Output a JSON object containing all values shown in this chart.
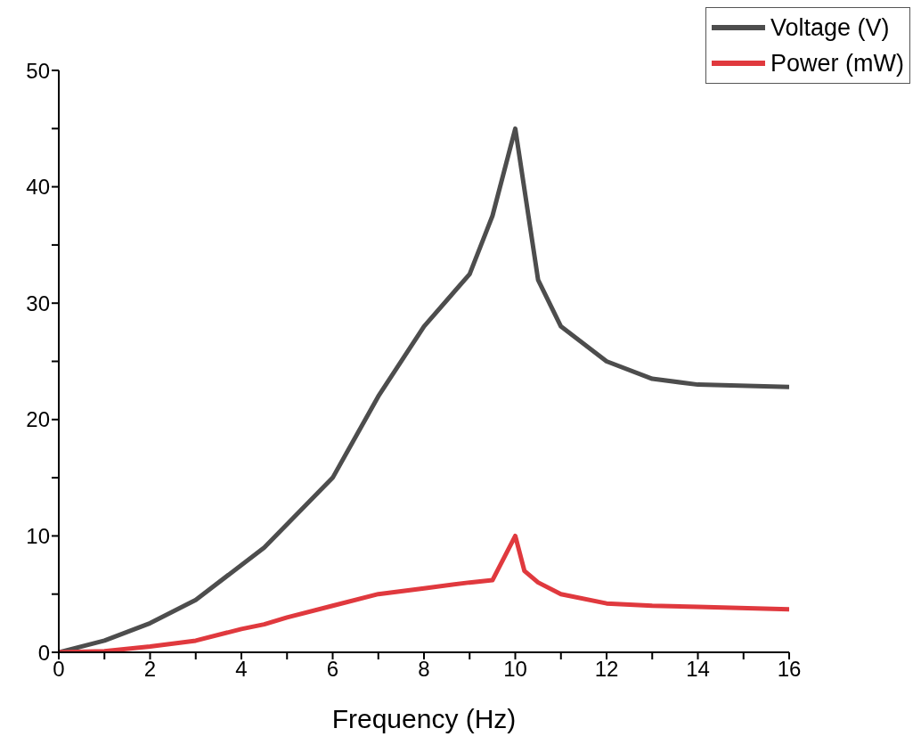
{
  "chart_data": {
    "type": "line",
    "xlabel": "Frequency (Hz)",
    "xlim": [
      0,
      16
    ],
    "ylim": [
      0,
      50
    ],
    "xticks": [
      0,
      {
        "value": 1,
        "label": null
      },
      2,
      {
        "value": 3,
        "label": null
      },
      4,
      {
        "value": 5,
        "label": null
      },
      6,
      {
        "value": 7,
        "label": null
      },
      8,
      {
        "value": 9,
        "label": null
      },
      10,
      {
        "value": 11,
        "label": null
      },
      12,
      {
        "value": 13,
        "label": null
      },
      14,
      {
        "value": 15,
        "label": null
      },
      16
    ],
    "yticks": [
      0,
      {
        "value": 5,
        "label": null
      },
      10,
      {
        "value": 15,
        "label": null
      },
      20,
      {
        "value": 25,
        "label": null
      },
      30,
      {
        "value": 35,
        "label": null
      },
      40,
      {
        "value": 45,
        "label": null
      },
      50
    ],
    "grid": false,
    "legend": "top right",
    "marker": "none",
    "line_style": "solid",
    "series": [
      {
        "name": "Voltage (V)",
        "color": "#4d4d4d",
        "x": [
          0,
          1,
          2,
          3,
          4.5,
          6,
          7,
          8,
          9,
          9.5,
          10,
          10.5,
          11,
          12,
          13,
          14,
          16
        ],
        "values": [
          0,
          1,
          2.5,
          4.5,
          9,
          15,
          22,
          28,
          32.5,
          37.5,
          45,
          32,
          28,
          25,
          23.5,
          23,
          22.8
        ]
      },
      {
        "name": "Power (mW)",
        "color": "#e0393e",
        "x": [
          0,
          1,
          2,
          3,
          4,
          4.5,
          5,
          6,
          7,
          8,
          9,
          9.5,
          10,
          10.2,
          10.5,
          11,
          12,
          13,
          14,
          16
        ],
        "values": [
          0,
          0.1,
          0.5,
          1,
          2,
          2.4,
          3,
          4,
          5,
          5.5,
          6,
          6.2,
          10,
          7,
          6,
          5,
          4.2,
          4,
          3.9,
          3.7
        ]
      }
    ]
  }
}
